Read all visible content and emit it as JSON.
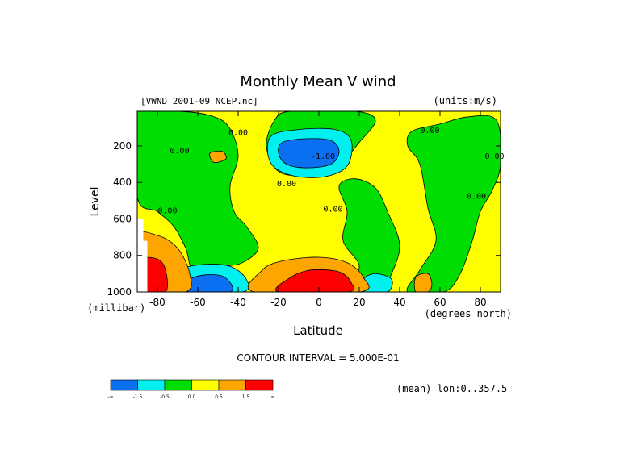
{
  "chart_data": {
    "type": "contour",
    "title": "Monthly Mean V wind",
    "dataset_label": "[VWND_2001-09_NCEP.nc]",
    "units_label": "(units:m/s)",
    "xlabel": "Latitude",
    "x_units_label": "(degrees_north)",
    "ylabel": "Level",
    "y_units_label": "(millibar)",
    "x_range": [
      -90,
      90
    ],
    "y_range": [
      1000,
      10
    ],
    "y_reversed": true,
    "x_ticks": [
      "-80",
      "-60",
      "-40",
      "-20",
      "0",
      "20",
      "40",
      "60",
      "80"
    ],
    "x_tick_values": [
      -80,
      -60,
      -40,
      -20,
      0,
      20,
      40,
      60,
      80
    ],
    "y_ticks": [
      "200",
      "400",
      "600",
      "800",
      "1000"
    ],
    "y_tick_values": [
      200,
      400,
      600,
      800,
      1000
    ],
    "contour_interval_label": "CONTOUR INTERVAL = 5.000E-01",
    "mean_label": "(mean) lon:0..357.5",
    "contour_labels": [
      {
        "text": "0.00",
        "lat": -69,
        "level": 240
      },
      {
        "text": "0.00",
        "lat": -40,
        "level": 140
      },
      {
        "text": "0.00",
        "lat": -16,
        "level": 420
      },
      {
        "text": "0.00",
        "lat": 7,
        "level": 560
      },
      {
        "text": "0.00",
        "lat": 55,
        "level": 130
      },
      {
        "text": "-1.00",
        "lat": 2,
        "level": 270
      },
      {
        "text": "0.00",
        "lat": 78,
        "level": 490
      },
      {
        "text": "0.00",
        "lat": 87,
        "level": 270
      },
      {
        "text": "0.00",
        "lat": -75,
        "level": 570
      }
    ],
    "fill_levels": [
      {
        "label": "-1.5 and below",
        "color": "#0b6ff2"
      },
      {
        "label": "-1.5 to -0.5",
        "color": "#00f0f0"
      },
      {
        "label": "-0.5 to 0.0",
        "color": "#00dd00"
      },
      {
        "label": "0.0 to 0.5",
        "color": "#ffff00"
      },
      {
        "label": "0.5 to 1.5",
        "color": "#ffa500"
      },
      {
        "label": "1.5 and above",
        "color": "#ff0000"
      }
    ],
    "colorbar": {
      "colors": [
        "#0b6ff2",
        "#00f0f0",
        "#00dd00",
        "#ffff00",
        "#ffa500",
        "#ff0000"
      ],
      "labels": [
        "-∞",
        "-1.5",
        "-0.5",
        "0.0",
        "0.5",
        "1.5",
        "∞"
      ]
    },
    "regions": [
      {
        "name": "negative-core-upper",
        "level": "blue",
        "lat": [
          -20,
          8
        ],
        "pressure": [
          170,
          340
        ]
      },
      {
        "name": "negative-halo-upper",
        "level": "cyan",
        "lat": [
          -24,
          12
        ],
        "pressure": [
          120,
          380
        ]
      },
      {
        "name": "negative-core-sh-surface",
        "level": "blue",
        "lat": [
          -66,
          -44
        ],
        "pressure": [
          920,
          1000
        ]
      },
      {
        "name": "negative-halo-sh-surface",
        "level": "cyan",
        "lat": [
          -70,
          -36
        ],
        "pressure": [
          860,
          1000
        ]
      },
      {
        "name": "negative-halo-nh-surface",
        "level": "cyan",
        "lat": [
          22,
          36
        ],
        "pressure": [
          920,
          1000
        ]
      },
      {
        "name": "positive-core-tropical-surface",
        "level": "red",
        "lat": [
          -18,
          14
        ],
        "pressure": [
          880,
          1000
        ]
      },
      {
        "name": "positive-halo-tropical-surface",
        "level": "orange",
        "lat": [
          -30,
          22
        ],
        "pressure": [
          800,
          1000
        ]
      },
      {
        "name": "positive-core-antarctic",
        "level": "red",
        "lat": [
          -86,
          -76
        ],
        "pressure": [
          860,
          1000
        ]
      },
      {
        "name": "positive-halo-antarctic",
        "level": "orange",
        "lat": [
          -90,
          -66
        ],
        "pressure": [
          720,
          1000
        ]
      }
    ]
  }
}
